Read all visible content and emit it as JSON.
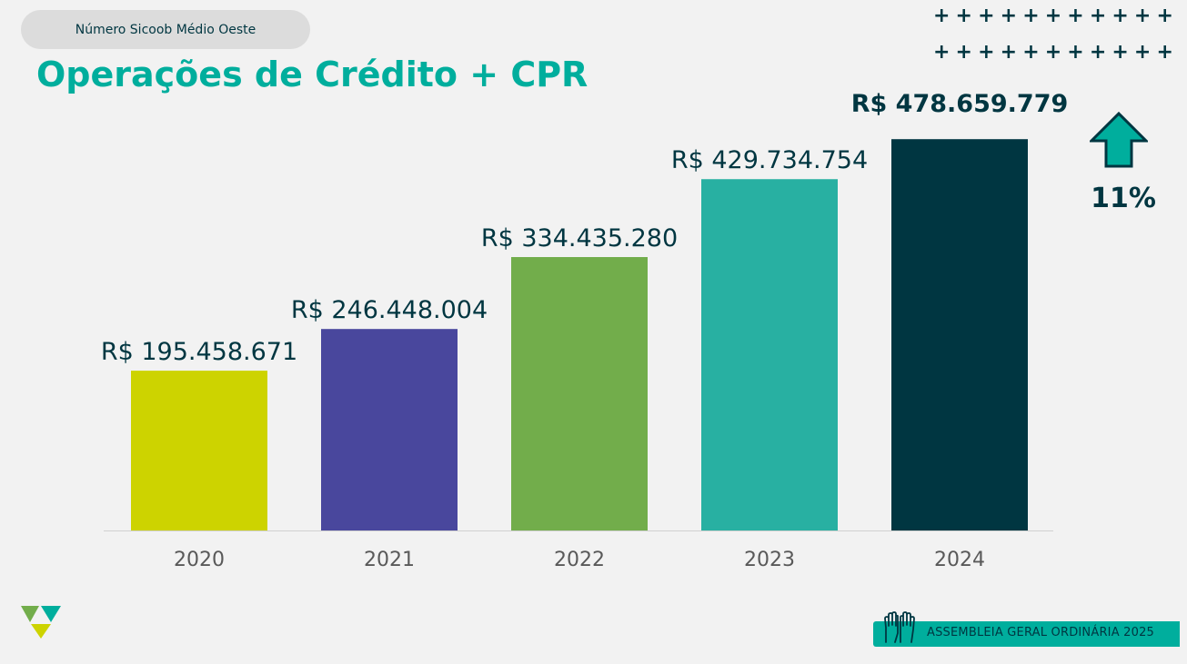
{
  "header": {
    "pill_label": "Número Sicoob Médio Oeste",
    "title": "Operações de Crédito + CPR"
  },
  "decorations": {
    "plus_rows": [
      [
        "+",
        "+",
        "+",
        "+",
        "+",
        "+",
        "+",
        "+",
        "+",
        "+",
        "+"
      ],
      [
        "+",
        "+",
        "+",
        "+",
        "+",
        "+",
        "+",
        "+",
        "+",
        "+",
        "+"
      ]
    ]
  },
  "growth": {
    "percent": "11%",
    "icon": "up-arrow-icon"
  },
  "chart_data": {
    "type": "bar",
    "categories": [
      "2020",
      "2021",
      "2022",
      "2023",
      "2024"
    ],
    "values": [
      195458671,
      246448004,
      334435280,
      429734754,
      478659779
    ],
    "labels": [
      "R$ 195.458.671",
      "R$ 246.448.004",
      "R$ 334.435.280",
      "R$ 429.734.754",
      "R$ 478.659.779"
    ],
    "colors": [
      "#cdd300",
      "#49479d",
      "#72ad4b",
      "#28b0a2",
      "#003641"
    ],
    "title": "",
    "xlabel": "",
    "ylabel": "",
    "ylim": [
      0,
      500000000
    ],
    "grid": false,
    "legend": "none"
  },
  "footer": {
    "banner_text": "ASSEMBLEIA GERAL ORDINÁRIA 2025",
    "logo": "sicoob-logo-icon",
    "banner_icon": "raised-hands-icon"
  }
}
